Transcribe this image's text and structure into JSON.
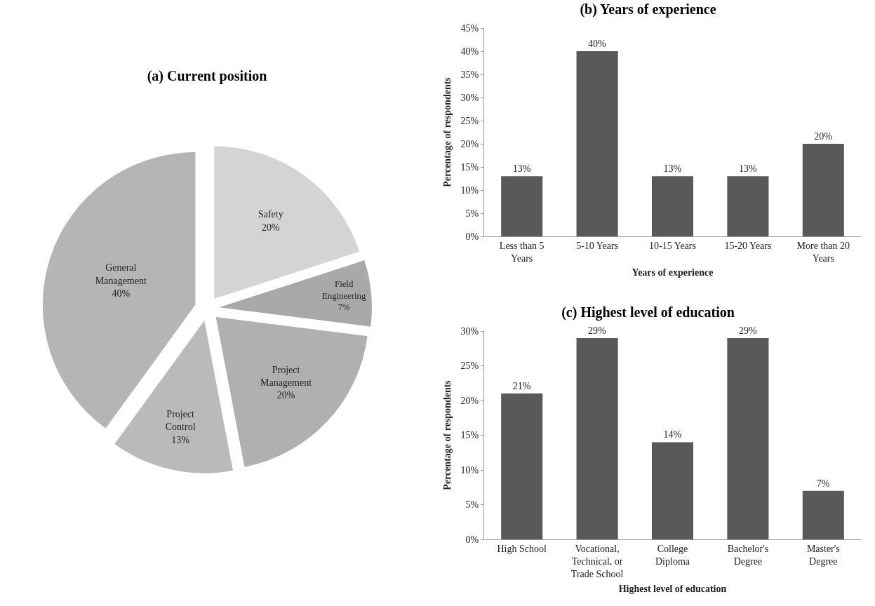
{
  "chart_data": [
    {
      "type": "pie",
      "title": "(a) Current position",
      "categories": [
        "Safety",
        "Field Engineering",
        "Project Management",
        "Project Control",
        "General Management"
      ],
      "values": [
        20,
        7,
        20,
        13,
        40
      ],
      "value_labels": [
        "20%",
        "7%",
        "20%",
        "13%",
        "40%"
      ],
      "colors": [
        "#d4d4d4",
        "#a9a9a9",
        "#b0b0b0",
        "#bababa",
        "#b5b5b5"
      ],
      "legend": false
    },
    {
      "type": "bar",
      "title": "(b) Years of experience",
      "xlabel": "Years of experience",
      "ylabel": "Percentage of respondents",
      "categories": [
        "Less than 5 Years",
        "5-10 Years",
        "10-15 Years",
        "15-20 Years",
        "More than 20 Years"
      ],
      "values": [
        13,
        40,
        13,
        13,
        20
      ],
      "value_labels": [
        "13%",
        "40%",
        "13%",
        "13%",
        "20%"
      ],
      "color": "#595959",
      "ylim": [
        0,
        45
      ],
      "yticks": [
        {
          "value": 0,
          "label": "0%"
        },
        {
          "value": 5,
          "label": "5%"
        },
        {
          "value": 10,
          "label": "10%"
        },
        {
          "value": 15,
          "label": "15%"
        },
        {
          "value": 20,
          "label": "20%"
        },
        {
          "value": 25,
          "label": "25%"
        },
        {
          "value": 30,
          "label": "30%"
        },
        {
          "value": 35,
          "label": "35%"
        },
        {
          "value": 40,
          "label": "40%"
        },
        {
          "value": 45,
          "label": "45%"
        }
      ],
      "grid": false,
      "legend": false
    },
    {
      "type": "bar",
      "title": "(c) Highest level of education",
      "xlabel": "Highest level of education",
      "ylabel": "Percentage of respondents",
      "categories": [
        "High School",
        "Vocational, Technical, or Trade School",
        "College Diploma",
        "Bachelor's Degree",
        "Master's Degree"
      ],
      "values": [
        21,
        29,
        14,
        29,
        7
      ],
      "value_labels": [
        "21%",
        "29%",
        "14%",
        "29%",
        "7%"
      ],
      "color": "#595959",
      "ylim": [
        0,
        30
      ],
      "yticks": [
        {
          "value": 0,
          "label": "0%"
        },
        {
          "value": 5,
          "label": "5%"
        },
        {
          "value": 10,
          "label": "10%"
        },
        {
          "value": 15,
          "label": "15%"
        },
        {
          "value": 20,
          "label": "20%"
        },
        {
          "value": 25,
          "label": "25%"
        },
        {
          "value": 30,
          "label": "30%"
        }
      ],
      "grid": false,
      "legend": false
    }
  ]
}
